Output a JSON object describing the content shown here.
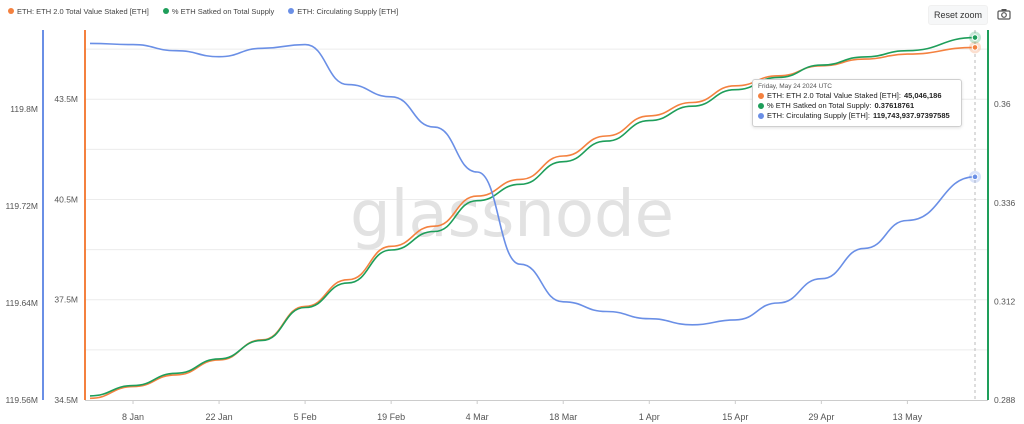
{
  "legend": [
    {
      "label": "ETH: ETH 2.0 Total Value Staked [ETH]",
      "color": "#f4813f"
    },
    {
      "label": "% ETH Satked on Total Supply",
      "color": "#1e9e5a"
    },
    {
      "label": "ETH: Circulating Supply [ETH]",
      "color": "#6a8fe6"
    }
  ],
  "toolbar": {
    "reset_zoom_label": "Reset zoom",
    "camera_icon": "camera-icon"
  },
  "watermark": "glassnode",
  "tooltip": {
    "date": "Friday, May 24 2024 UTC",
    "rows": [
      {
        "label": "ETH: ETH 2.0 Total Value Staked [ETH]:",
        "value": "45,046,186",
        "color": "#f4813f"
      },
      {
        "label": "% ETH Satked on Total Supply:",
        "value": "0.37618761",
        "color": "#1e9e5a"
      },
      {
        "label": "ETH: Circulating Supply [ETH]:",
        "value": "119,743,937.97397585",
        "color": "#6a8fe6"
      }
    ]
  },
  "chart_data": {
    "type": "line",
    "x_tick_labels": [
      "8 Jan",
      "22 Jan",
      "5 Feb",
      "19 Feb",
      "4 Mar",
      "18 Mar",
      "1 Apr",
      "15 Apr",
      "29 Apr",
      "13 May"
    ],
    "x_range": [
      "2024-01-01",
      "2024-05-24"
    ],
    "axes": {
      "supply": {
        "ticks": [
          "119.8M",
          "119.72M",
          "119.64M",
          "119.56M"
        ],
        "tick_values": [
          119.8,
          119.72,
          119.64,
          119.56
        ],
        "range": [
          119.56,
          119.87
        ],
        "color": "#6a8fe6",
        "side": "left-outer"
      },
      "staked": {
        "ticks": [
          "43.5M",
          "40.5M",
          "37.5M",
          "34.5M"
        ],
        "tick_values": [
          43.5,
          40.5,
          37.5,
          34.5
        ],
        "range": [
          34.5,
          45.75
        ],
        "color": "#f4813f",
        "side": "left-inner"
      },
      "percent": {
        "ticks": [
          "0.36",
          "0.336",
          "0.312",
          "0.288"
        ],
        "tick_values": [
          0.36,
          0.336,
          0.312,
          0.288
        ],
        "range": [
          0.288,
          0.3795
        ],
        "color": "#1e9e5a",
        "side": "right"
      }
    },
    "series": [
      {
        "name": "ETH: ETH 2.0 Total Value Staked [ETH]",
        "axis": "staked",
        "color": "#f4813f",
        "points": [
          [
            "2024-01-01",
            34.55
          ],
          [
            "2024-01-08",
            34.9
          ],
          [
            "2024-01-15",
            35.25
          ],
          [
            "2024-01-22",
            35.7
          ],
          [
            "2024-01-29",
            36.3
          ],
          [
            "2024-02-05",
            37.3
          ],
          [
            "2024-02-12",
            38.1
          ],
          [
            "2024-02-19",
            39.1
          ],
          [
            "2024-02-26",
            39.7
          ],
          [
            "2024-03-04",
            40.6
          ],
          [
            "2024-03-11",
            41.1
          ],
          [
            "2024-03-18",
            41.8
          ],
          [
            "2024-03-25",
            42.4
          ],
          [
            "2024-04-01",
            43.0
          ],
          [
            "2024-04-08",
            43.4
          ],
          [
            "2024-04-15",
            43.9
          ],
          [
            "2024-04-22",
            44.2
          ],
          [
            "2024-04-29",
            44.5
          ],
          [
            "2024-05-06",
            44.7
          ],
          [
            "2024-05-13",
            44.85
          ],
          [
            "2024-05-24",
            45.05
          ]
        ]
      },
      {
        "name": "% ETH Satked on Total Supply",
        "axis": "percent",
        "color": "#1e9e5a",
        "points": [
          [
            "2024-01-01",
            0.289
          ],
          [
            "2024-01-08",
            0.2915
          ],
          [
            "2024-01-15",
            0.2945
          ],
          [
            "2024-01-22",
            0.298
          ],
          [
            "2024-01-29",
            0.3025
          ],
          [
            "2024-02-05",
            0.3105
          ],
          [
            "2024-02-12",
            0.3165
          ],
          [
            "2024-02-19",
            0.3245
          ],
          [
            "2024-02-26",
            0.329
          ],
          [
            "2024-03-04",
            0.3365
          ],
          [
            "2024-03-11",
            0.3405
          ],
          [
            "2024-03-18",
            0.346
          ],
          [
            "2024-03-25",
            0.351
          ],
          [
            "2024-04-01",
            0.356
          ],
          [
            "2024-04-08",
            0.3595
          ],
          [
            "2024-04-15",
            0.3635
          ],
          [
            "2024-04-22",
            0.3665
          ],
          [
            "2024-04-29",
            0.3695
          ],
          [
            "2024-05-06",
            0.3715
          ],
          [
            "2024-05-13",
            0.373
          ],
          [
            "2024-05-24",
            0.3762
          ]
        ]
      },
      {
        "name": "ETH: Circulating Supply [ETH]",
        "axis": "supply",
        "color": "#6a8fe6",
        "points": [
          [
            "2024-01-01",
            119.854
          ],
          [
            "2024-01-08",
            119.853
          ],
          [
            "2024-01-15",
            119.848
          ],
          [
            "2024-01-22",
            119.843
          ],
          [
            "2024-01-29",
            119.85
          ],
          [
            "2024-02-05",
            119.853
          ],
          [
            "2024-02-12",
            119.82
          ],
          [
            "2024-02-19",
            119.81
          ],
          [
            "2024-02-26",
            119.785
          ],
          [
            "2024-03-04",
            119.748
          ],
          [
            "2024-03-11",
            119.672
          ],
          [
            "2024-03-18",
            119.641
          ],
          [
            "2024-03-25",
            119.633
          ],
          [
            "2024-04-01",
            119.627
          ],
          [
            "2024-04-08",
            119.622
          ],
          [
            "2024-04-15",
            119.626
          ],
          [
            "2024-04-22",
            119.64
          ],
          [
            "2024-04-29",
            119.66
          ],
          [
            "2024-05-06",
            119.685
          ],
          [
            "2024-05-13",
            119.708
          ],
          [
            "2024-05-24",
            119.744
          ]
        ]
      }
    ],
    "gridlines": "horizontal"
  }
}
